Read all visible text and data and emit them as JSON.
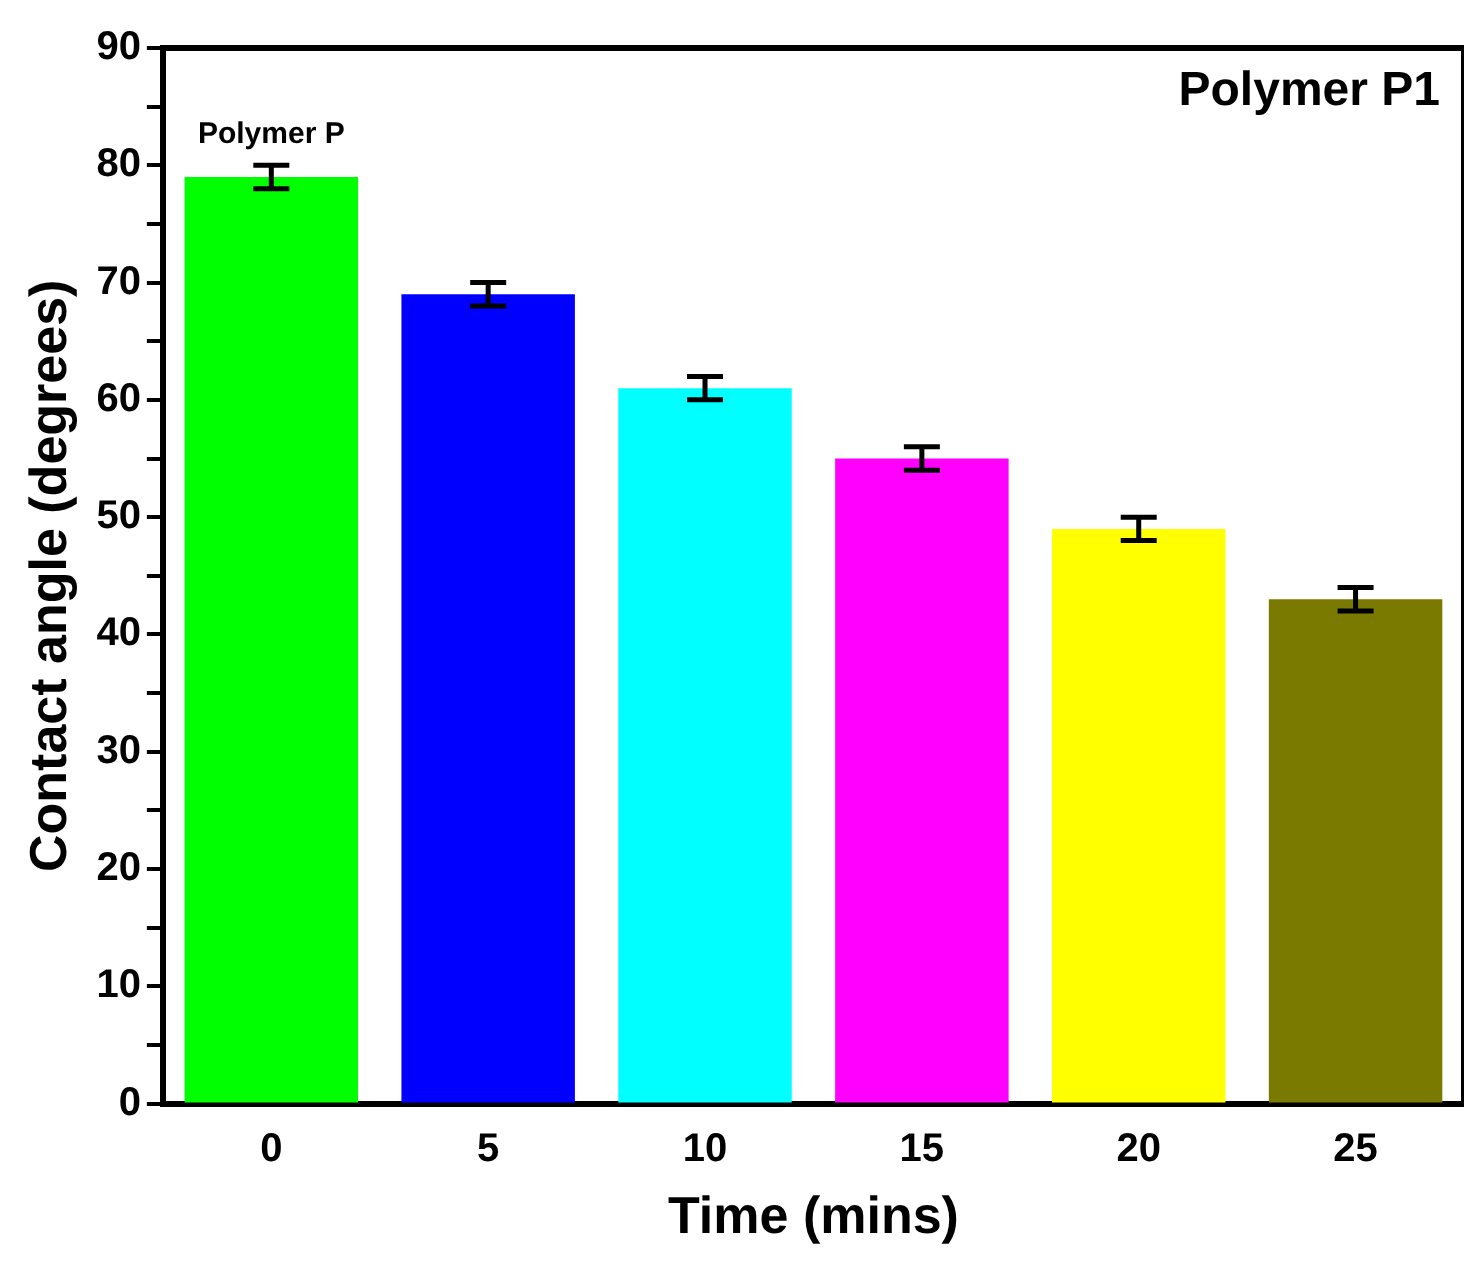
{
  "chart_data": {
    "type": "bar",
    "title": "Polymer P1",
    "xlabel": "Time (mins)",
    "ylabel": "Contact angle (degrees)",
    "categories": [
      "0",
      "5",
      "10",
      "15",
      "20",
      "25"
    ],
    "values": [
      79,
      69,
      61,
      55,
      49,
      43
    ],
    "errors": [
      1,
      1,
      1,
      1,
      1,
      1
    ],
    "colors": [
      "#00ff00",
      "#0000ff",
      "#00ffff",
      "#ff00ff",
      "#ffff00",
      "#7a7a00"
    ],
    "ylim": [
      0,
      90
    ],
    "yticks": [
      0,
      {
        "value": 5,
        "label": null
      },
      10,
      {
        "value": 15,
        "label": null
      },
      20,
      {
        "value": 25,
        "label": null
      },
      30,
      {
        "value": 35,
        "label": null
      },
      40,
      {
        "value": 45,
        "label": null
      },
      50,
      {
        "value": 55,
        "label": null
      },
      60,
      {
        "value": 65,
        "label": null
      },
      70,
      {
        "value": 75,
        "label": null
      },
      80,
      {
        "value": 85,
        "label": null
      },
      90
    ],
    "annotations": [
      {
        "text": "Polymer P",
        "x": "0",
        "y": 79
      }
    ],
    "grid": false,
    "legend": false
  }
}
